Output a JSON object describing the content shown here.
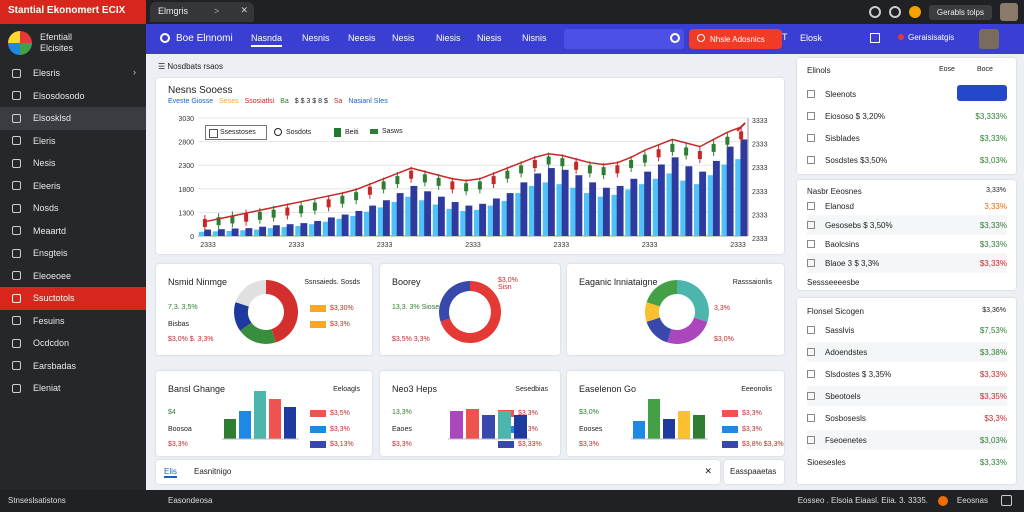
{
  "top": {
    "brand": "Stantial Ekonomert",
    "brand_tag": "ECIX",
    "tab_label": "Elmgris",
    "profile_name": "Gerabls tolps"
  },
  "sidebar": {
    "title_line1": "Efentiall",
    "title_line2": "Elcisites",
    "items": [
      {
        "label": "Elesris",
        "icon": "list-icon"
      },
      {
        "label": "Elsosdosodo",
        "icon": "file-icon"
      },
      {
        "label": "Elsosklsd",
        "icon": "circle-icon"
      },
      {
        "label": "Eleris",
        "icon": "doc-icon"
      },
      {
        "label": "Nesis",
        "icon": "chat-icon"
      },
      {
        "label": "Eleeris",
        "icon": "folder-icon"
      },
      {
        "label": "Nosds",
        "icon": "star-icon"
      },
      {
        "label": "Meaartd",
        "icon": "grid-icon"
      },
      {
        "label": "Ensgteis",
        "icon": "doc-icon"
      },
      {
        "label": "Eleoeoee",
        "icon": "table-icon"
      },
      {
        "label": "Ssuctotols",
        "icon": "home-icon"
      },
      {
        "label": "Fesuins",
        "icon": "doc-icon"
      },
      {
        "label": "Ocdcdon",
        "icon": "square-icon"
      },
      {
        "label": "Earsbadas",
        "icon": "user-icon"
      },
      {
        "label": "Eleniat",
        "icon": "gear-icon"
      }
    ],
    "footer": "Stnseslsatistons"
  },
  "nav": {
    "title": "Boe Elnnomi",
    "tabs": [
      "Nasnda",
      "Nesnis",
      "Neesis",
      "Nesis",
      "Niesis",
      "Niesis",
      "Nisnis"
    ],
    "cta": "Nhsle Adosnics",
    "right_label": "Elosk",
    "user_label": "Geraisisatgis"
  },
  "content": {
    "breadcrumb": "Nosdbats rsaos",
    "main_chart": {
      "title": "Nesns Sooess",
      "subtitle_parts": [
        {
          "text": "Eveste Giosse",
          "color": "#1565c0"
        },
        {
          "text": "Seses",
          "color": "#f9a825"
        },
        {
          "text": "Ssosiatlsi",
          "color": "#c62828"
        },
        {
          "text": "Ba",
          "color": "#2e7d32"
        },
        {
          "text": "$ $ 3 $ 8 $",
          "color": "#222222"
        },
        {
          "text": "Sa",
          "color": "#c62828"
        },
        {
          "text": "Nasianl SIes",
          "color": "#1565c0"
        }
      ],
      "legend_box": "Ssesstoses",
      "legend": [
        "Sosdots",
        "Beiti",
        "Sasws"
      ]
    },
    "cards": [
      {
        "title": "Nsmid Ninmge",
        "head": "Ssnsaieds. Sosds",
        "l1": "7,3. 3,5%",
        "l2": "Bisbas",
        "l3": "$3,0% $. 3,3%",
        "r1": "$3,30%",
        "r2": "$3,3%",
        "r3": ""
      },
      {
        "title": "Boorey",
        "annot": "$3,0%\nSisn",
        "l1": "13,3. 3% Sioseos",
        "l2": "",
        "l3": "$3,5% 3,3%",
        "r1": "",
        "r2": "",
        "r3": ""
      },
      {
        "title": "Eaganic lnniataigne",
        "head": "Rasssaionlis",
        "l1": "",
        "l2": "",
        "l3": "",
        "r1": "3,3%",
        "r2": "",
        "r3": "$3,0%"
      },
      {
        "title": "Bansl Ghange",
        "head": "Eeloagls",
        "l1": "$4",
        "l2": "Boosoa",
        "l3": "$3,3%",
        "r1": "$3,5%",
        "r2": "$3,3%",
        "r3": "$3,13%"
      },
      {
        "title": "Neo3 Heps",
        "head": "Sesedbias",
        "l1": "13,3%",
        "l2": "Eaoes",
        "l3": "$3,3%",
        "r1": "$3,3%",
        "r2": "$3,3%",
        "r3": "$3,33%"
      },
      {
        "title": "Easelenon Go",
        "head": "Eeeonolis",
        "l1": "$3,0%",
        "l2": "Eooses",
        "l3": "$3,3%",
        "r1": "$3,3%",
        "r2": "$3,3%",
        "r3": "$3,8% $3,3%"
      }
    ],
    "bottom_tabs": {
      "active": "Elis",
      "other": "Easnitnigo",
      "right": "Easspaaetas"
    }
  },
  "right": {
    "panel1": {
      "title": "Elinols",
      "header_right": [
        "Eose",
        "Boce"
      ],
      "rows": [
        {
          "label": "Sleenots",
          "value": "",
          "icon": "check-icon"
        },
        {
          "label": "Eiososo $ 3,20%",
          "value": "$3,333%",
          "vcolor": "green",
          "icon": "box-icon"
        },
        {
          "label": "Sisblades",
          "value": "$3,33%",
          "vcolor": "green",
          "icon": "box-icon"
        },
        {
          "label": "Sosdstes $3,50%",
          "value": "$3,03%",
          "vcolor": "green",
          "icon": "gear-icon"
        }
      ]
    },
    "panel2": {
      "title": "Nasbr Eeosnes",
      "header_right": "3,33%",
      "rows": [
        {
          "label": "Elanosd",
          "value": "3,33%",
          "vcolor": "orange",
          "icon": "box-icon"
        },
        {
          "label": "Gesosebs $ 3,50%",
          "value": "$3,33%",
          "vcolor": "green",
          "icon": "box-icon"
        },
        {
          "label": "Baolcsins",
          "value": "$3,33%",
          "vcolor": "green",
          "icon": "chat-icon"
        },
        {
          "label": "Blaoe 3 $ 3,3%",
          "value": "$3,33%",
          "vcolor": "red",
          "icon": "bracket-icon"
        },
        {
          "label": "Sessseeeesbe",
          "value": "",
          "icon": ""
        }
      ]
    },
    "panel3": {
      "title": "Flonsel Sicogen",
      "header_right": "$3,36%",
      "rows": [
        {
          "label": "Sasslvis",
          "value": "$7,53%",
          "vcolor": "green",
          "icon": "box-icon"
        },
        {
          "label": "Adoendstes",
          "value": "$3,38%",
          "vcolor": "green",
          "icon": "doc-icon"
        },
        {
          "label": "Slsdostes $ 3,35%",
          "value": "$3,33%",
          "vcolor": "red",
          "icon": "box-icon"
        },
        {
          "label": "Sbeotoels",
          "value": "$3,35%",
          "vcolor": "red",
          "icon": "bracket-icon"
        },
        {
          "label": "Sosbosesls",
          "value": "$3,3%",
          "vcolor": "red",
          "icon": "box-icon"
        },
        {
          "label": "Fseoenetes",
          "value": "$3,03%",
          "vcolor": "green",
          "icon": "doc-icon"
        },
        {
          "label": "Sioesesles",
          "value": "$3,33%",
          "vcolor": "green",
          "icon": ""
        }
      ]
    }
  },
  "bottom": {
    "left": "Stnseslsatistons",
    "mid": "Easondeosa",
    "right_text": "Eosseo . Elsoia Eiaasl. Eiia. 3. 3335.",
    "right_label": "Eeosnas"
  },
  "chart_data": [
    {
      "type": "bar",
      "title": "Nesns Sooess",
      "ylim": [
        0,
        3300
      ],
      "yticks": [
        "3030",
        "2800",
        "2300",
        "1800",
        "1300",
        "0"
      ],
      "right_ticks": [
        "3333",
        "2333",
        "2333",
        "2333",
        "2333",
        "2333"
      ],
      "xticks": [
        "2333",
        "2333",
        "2333",
        "2333",
        "2333",
        "2333",
        "2333"
      ],
      "x_count": 40,
      "series": [
        {
          "name": "Beiti",
          "kind": "bar",
          "color": "#2e3a9e",
          "values": [
            180,
            190,
            210,
            220,
            260,
            300,
            330,
            360,
            420,
            520,
            600,
            700,
            850,
            1000,
            1200,
            1400,
            1250,
            1100,
            950,
            850,
            900,
            1050,
            1200,
            1500,
            1750,
            1900,
            1850,
            1700,
            1500,
            1350,
            1400,
            1600,
            1800,
            2000,
            2200,
            1950,
            1800,
            2100,
            2500,
            2700
          ]
        },
        {
          "name": "",
          "kind": "bar",
          "color": "#4fc3f7",
          "values": [
            120,
            130,
            140,
            160,
            180,
            220,
            250,
            280,
            330,
            400,
            480,
            560,
            680,
            800,
            950,
            1100,
            1000,
            880,
            760,
            700,
            730,
            850,
            980,
            1200,
            1400,
            1500,
            1450,
            1350,
            1200,
            1100,
            1150,
            1300,
            1450,
            1600,
            1750,
            1550,
            1450,
            1700,
            2000,
            2150
          ]
        },
        {
          "name": "Sosdots",
          "kind": "line",
          "color": "#c62828",
          "values": [
            400,
            480,
            560,
            640,
            720,
            800,
            880,
            960,
            1040,
            1120,
            1200,
            1300,
            1450,
            1600,
            1750,
            1900,
            1800,
            1700,
            1600,
            1550,
            1600,
            1750,
            1900,
            2050,
            2200,
            2300,
            2250,
            2150,
            2050,
            2000,
            2050,
            2200,
            2400,
            2550,
            2700,
            2600,
            2500,
            2700,
            2900,
            3050
          ]
        },
        {
          "name": "Sasws",
          "kind": "candles",
          "color": "#2e7d32",
          "values": [
            300,
            350,
            400,
            450,
            500,
            560,
            620,
            680,
            760,
            850,
            950,
            1050,
            1200,
            1350,
            1500,
            1650,
            1550,
            1450,
            1350,
            1300,
            1350,
            1500,
            1650,
            1800,
            1950,
            2050,
            2000,
            1900,
            1800,
            1750,
            1800,
            1950,
            2100,
            2250,
            2400,
            2300,
            2200,
            2400,
            2600,
            2750
          ]
        }
      ]
    },
    {
      "type": "pie",
      "labels": [
        "",
        "",
        "",
        ""
      ],
      "values": [
        45,
        20,
        15,
        20
      ],
      "colors": [
        "#d32f2f",
        "#388e3c",
        "#1e3a9e",
        "#e0e0e0"
      ]
    },
    {
      "type": "pie",
      "labels": [
        "",
        ""
      ],
      "values": [
        70,
        30
      ],
      "colors": [
        "#e53935",
        "#3949ab"
      ]
    },
    {
      "type": "pie",
      "labels": [
        "",
        "",
        "",
        "",
        ""
      ],
      "values": [
        30,
        25,
        15,
        10,
        20
      ],
      "colors": [
        "#4db6ac",
        "#ab47bc",
        "#3949ab",
        "#fbc02d",
        "#43a047"
      ]
    },
    {
      "type": "bar",
      "values": [
        20,
        28,
        48,
        40,
        32
      ],
      "colors": [
        "#2e7d32",
        "#1e88e5",
        "#4db6ac",
        "#ef5350",
        "#1e3a9e"
      ]
    },
    {
      "type": "bar",
      "values": [
        28,
        30,
        24,
        28,
        24
      ],
      "colors": [
        "#ab47bc",
        "#ef5350",
        "#3949ab",
        "#4db6ac",
        "#1e3a9e"
      ]
    },
    {
      "type": "bar",
      "values": [
        18,
        40,
        20,
        28,
        24
      ],
      "colors": [
        "#1e88e5",
        "#43a047",
        "#1e3a9e",
        "#fbc02d",
        "#2e7d32"
      ]
    }
  ],
  "colors": {
    "brand_red": "#d9261c",
    "nav_blue": "#3b3ed2",
    "cta_red": "#f23b26",
    "sidebar_bg": "#25272b"
  }
}
